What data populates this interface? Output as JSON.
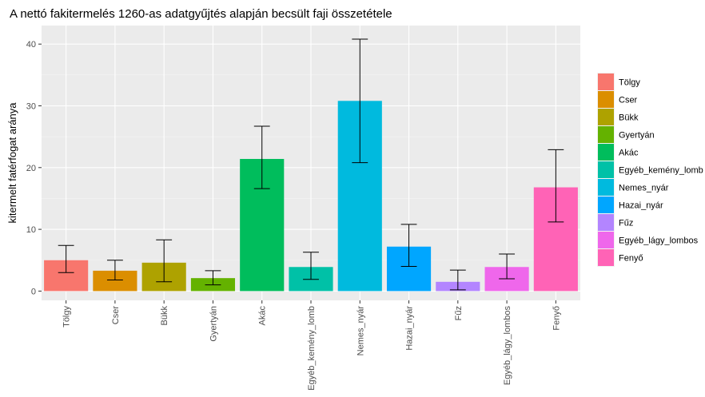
{
  "chart_data": {
    "type": "bar",
    "title": "A nettó fakitermelés 1260-as adatgyűjtés alapján becsült faji összetétele",
    "xlabel": "",
    "ylabel": "kitermelt fatérfogat aránya",
    "ylim": [
      -1.5,
      43
    ],
    "yticks": [
      0,
      10,
      20,
      30,
      40
    ],
    "grid": true,
    "legend_position": "right",
    "categories": [
      "Tölgy",
      "Cser",
      "Bükk",
      "Gyertyán",
      "Akác",
      "Egyéb_kemény_lomb",
      "Nemes_nyár",
      "Hazai_nyár",
      "Fűz",
      "Egyéb_lágy_lombos",
      "Fenyő"
    ],
    "values": [
      5.0,
      3.3,
      4.6,
      2.1,
      21.4,
      3.9,
      30.8,
      7.2,
      1.5,
      3.9,
      16.8
    ],
    "error_low": [
      3.0,
      1.8,
      1.5,
      1.0,
      16.6,
      1.9,
      20.8,
      4.0,
      0.2,
      2.0,
      11.2
    ],
    "error_high": [
      7.4,
      5.0,
      8.3,
      3.3,
      26.7,
      6.3,
      40.8,
      10.8,
      3.4,
      6.0,
      22.9
    ],
    "colors": [
      "#F8766D",
      "#DB8E00",
      "#AEA200",
      "#64B200",
      "#00BD5C",
      "#00C1A7",
      "#00BADE",
      "#00A6FF",
      "#B385FF",
      "#EF67EB",
      "#FF63B6"
    ]
  }
}
